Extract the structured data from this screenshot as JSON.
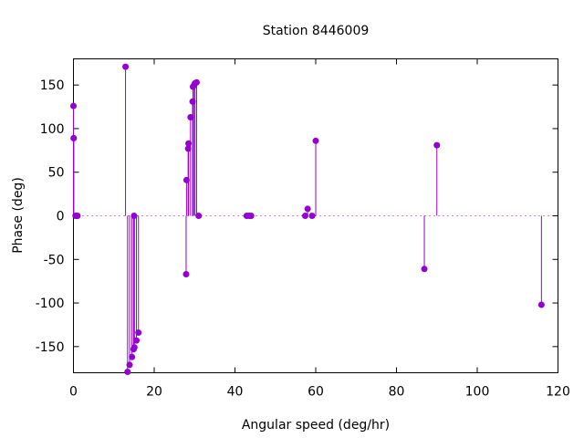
{
  "chart_data": {
    "type": "scatter",
    "title": "Station 8446009",
    "xlabel": "Angular speed (deg/hr)",
    "ylabel": "Phase (deg)",
    "xlim": [
      0,
      120
    ],
    "ylim": [
      -180,
      180
    ],
    "xticks": [
      0,
      20,
      40,
      60,
      80,
      100,
      120
    ],
    "yticks": [
      -150,
      -100,
      -50,
      0,
      50,
      100,
      150
    ],
    "grid": false,
    "zero_line": "dotted",
    "style": "impulses with point markers",
    "color": "#9400d3",
    "points": [
      {
        "x": 0.0,
        "y": 126
      },
      {
        "x": 0.04,
        "y": 89
      },
      {
        "x": 0.08,
        "y": 89
      },
      {
        "x": 0.5,
        "y": 0
      },
      {
        "x": 0.8,
        "y": 0
      },
      {
        "x": 1.0,
        "y": 0
      },
      {
        "x": 12.9,
        "y": 171
      },
      {
        "x": 13.4,
        "y": -179
      },
      {
        "x": 13.9,
        "y": -171
      },
      {
        "x": 14.5,
        "y": -162
      },
      {
        "x": 14.9,
        "y": -153
      },
      {
        "x": 15.0,
        "y": 0
      },
      {
        "x": 15.1,
        "y": -151
      },
      {
        "x": 15.6,
        "y": -143
      },
      {
        "x": 16.1,
        "y": -134
      },
      {
        "x": 27.9,
        "y": -67
      },
      {
        "x": 28.0,
        "y": 41
      },
      {
        "x": 28.4,
        "y": 77
      },
      {
        "x": 28.5,
        "y": 83
      },
      {
        "x": 29.0,
        "y": 113
      },
      {
        "x": 29.5,
        "y": 131
      },
      {
        "x": 29.6,
        "y": 148
      },
      {
        "x": 29.9,
        "y": 150
      },
      {
        "x": 30.1,
        "y": 152
      },
      {
        "x": 30.5,
        "y": 153
      },
      {
        "x": 31.0,
        "y": 0
      },
      {
        "x": 42.9,
        "y": 0
      },
      {
        "x": 43.5,
        "y": 0
      },
      {
        "x": 44.0,
        "y": 0
      },
      {
        "x": 57.4,
        "y": 0
      },
      {
        "x": 58.0,
        "y": 8
      },
      {
        "x": 59.1,
        "y": 0
      },
      {
        "x": 60.0,
        "y": 86
      },
      {
        "x": 86.9,
        "y": -61
      },
      {
        "x": 90.0,
        "y": 81
      },
      {
        "x": 115.9,
        "y": -102
      }
    ]
  }
}
